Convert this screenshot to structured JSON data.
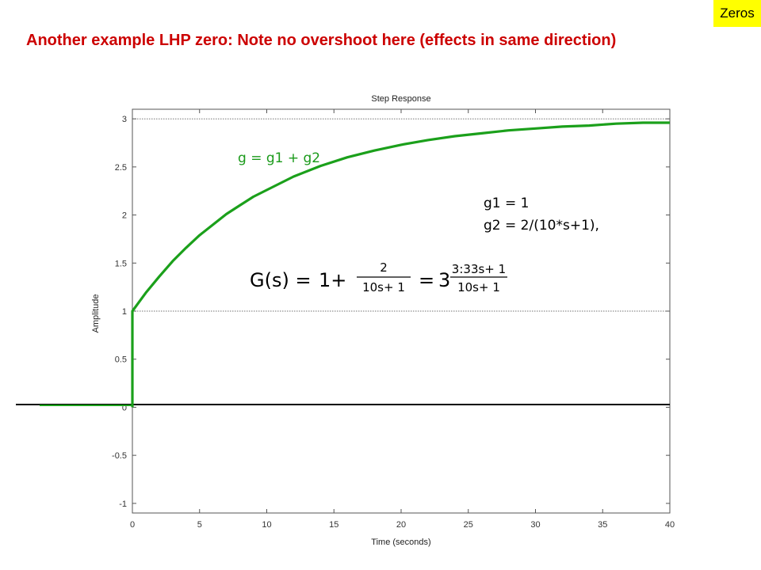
{
  "slide": {
    "tag": "Zeros",
    "title": "Another  example LHP zero: Note no overshoot here (effects in same direction)"
  },
  "colors": {
    "title": "#cc0000",
    "tag_background": "#ffff00",
    "response": "#1ba01b",
    "annotation_green": "#1a9a1a"
  },
  "annotations": {
    "sum_label": "g = g1 + g2",
    "g1_def": "g1 = 1",
    "g2_def": "g2 = 2/(10*s+1),",
    "equation": {
      "lhs": "G(s) =",
      "one_plus": "1+",
      "frac1_num": "2",
      "frac1_den": "10s+ 1",
      "equals": "=",
      "coef": "3",
      "frac2_num": "3:33s+ 1",
      "frac2_den": "10s+ 1"
    }
  },
  "chart_data": {
    "type": "line",
    "title": "Step Response",
    "xlabel": "Time (seconds)",
    "ylabel": "Amplitude",
    "xlim": [
      0,
      40
    ],
    "ylim": [
      -1.1,
      3.1
    ],
    "xticks": [
      0,
      5,
      10,
      15,
      20,
      25,
      30,
      35,
      40
    ],
    "yticks": [
      -1,
      -0.5,
      0,
      0.5,
      1,
      1.5,
      2,
      2.5,
      3
    ],
    "x_tick_labels": [
      "0",
      "5",
      "10",
      "15",
      "20",
      "25",
      "30",
      "35",
      "40"
    ],
    "y_tick_labels": [
      "-1",
      "-0.5",
      "0",
      "0.5",
      "1",
      "1.5",
      "2",
      "2.5",
      "3"
    ],
    "grid": false,
    "reference_lines": [
      {
        "y": 3,
        "style": "dotted"
      },
      {
        "y": 1,
        "style": "dotted"
      }
    ],
    "series": [
      {
        "x": [
          0,
          0,
          1,
          2,
          3,
          4,
          5,
          6,
          7,
          8,
          9,
          10,
          12,
          14,
          16,
          18,
          20,
          22,
          24,
          26,
          28,
          30,
          32,
          34,
          36,
          38,
          40
        ],
        "y": [
          0,
          1,
          1.19,
          1.36,
          1.52,
          1.66,
          1.79,
          1.9,
          2.01,
          2.1,
          2.19,
          2.26,
          2.4,
          2.51,
          2.6,
          2.67,
          2.73,
          2.78,
          2.82,
          2.85,
          2.88,
          2.9,
          2.92,
          2.93,
          2.95,
          2.96,
          2.96
        ]
      }
    ]
  }
}
